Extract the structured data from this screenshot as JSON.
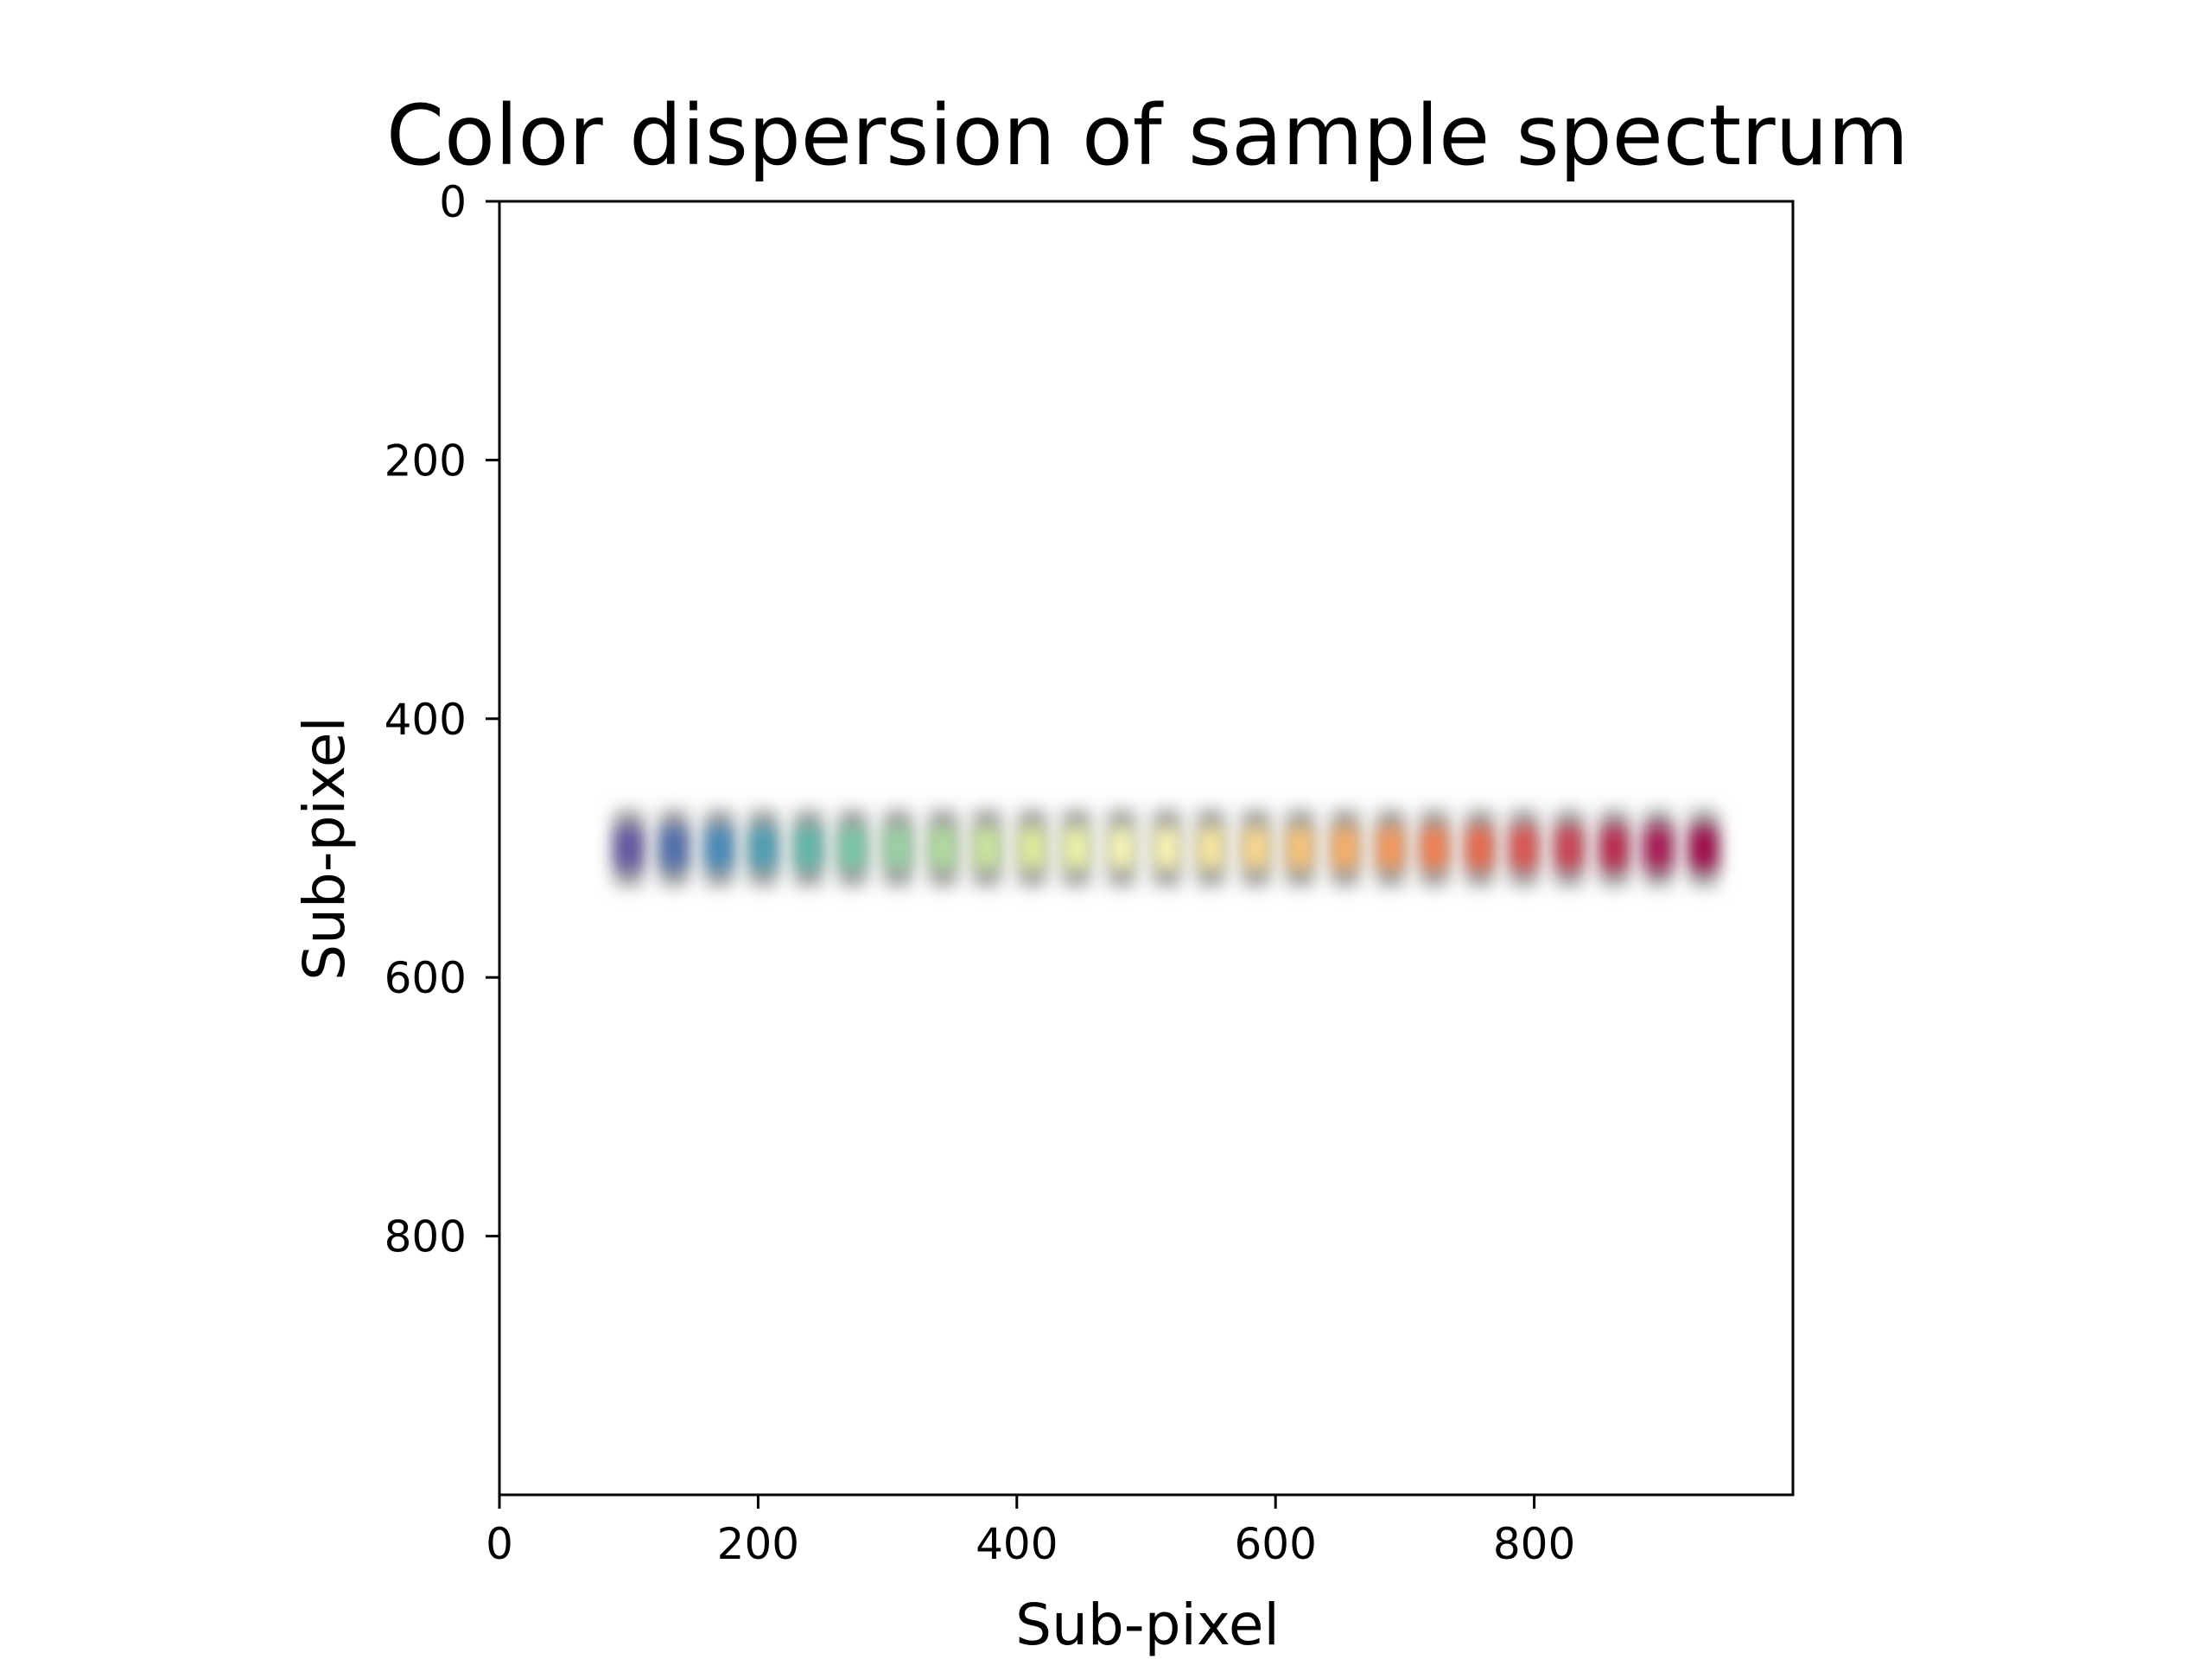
{
  "chart_data": {
    "type": "heatmap",
    "title": "Color dispersion of sample spectrum",
    "xlabel": "Sub-pixel",
    "ylabel": "Sub-pixel",
    "xlim": [
      0,
      1000
    ],
    "ylim": [
      1000,
      0
    ],
    "y_axis_inverted": true,
    "x_ticks": [
      0,
      200,
      400,
      600,
      800
    ],
    "y_ticks": [
      0,
      200,
      400,
      600,
      800
    ],
    "grid": false,
    "legend": "none",
    "spots": {
      "y": 500,
      "x": [
        100,
        135,
        170,
        204,
        239,
        273,
        308,
        343,
        377,
        412,
        446,
        481,
        516,
        550,
        585,
        619,
        654,
        689,
        723,
        758,
        792,
        827,
        862,
        896,
        931
      ],
      "colors": [
        "#5e4fa2",
        "#4a69ae",
        "#3f87bc",
        "#479db4",
        "#5cb7a9",
        "#76c9a5",
        "#98d5a4",
        "#b1df9f",
        "#cdea9d",
        "#e2f39b",
        "#f1f9a9",
        "#fbfbb7",
        "#fff8b4",
        "#feeb9f",
        "#fedb8c",
        "#fdc676",
        "#fdaf63",
        "#fa9757",
        "#f67d4b",
        "#ec6546",
        "#de4d4b",
        "#ce3a4e",
        "#bc2149",
        "#a8104d",
        "#9e0142"
      ]
    }
  }
}
